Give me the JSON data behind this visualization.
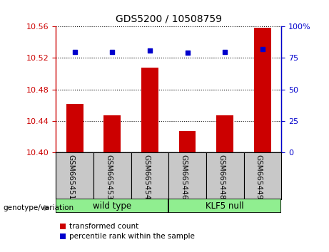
{
  "title": "GDS5200 / 10508759",
  "categories": [
    "GSM665451",
    "GSM665453",
    "GSM665454",
    "GSM665446",
    "GSM665448",
    "GSM665449"
  ],
  "bar_values": [
    10.462,
    10.447,
    10.508,
    10.427,
    10.447,
    10.558
  ],
  "percentile_values": [
    80,
    80,
    81,
    79,
    80,
    82
  ],
  "ylim_left": [
    10.4,
    10.56
  ],
  "ylim_right": [
    0,
    100
  ],
  "yticks_left": [
    10.4,
    10.44,
    10.48,
    10.52,
    10.56
  ],
  "yticks_right": [
    0,
    25,
    50,
    75,
    100
  ],
  "bar_color": "#cc0000",
  "percentile_color": "#0000cc",
  "wild_type_label": "wild type",
  "klf5_null_label": "KLF5 null",
  "group_bg_color": "#90ee90",
  "label_area_color": "#c8c8c8",
  "legend_bar_label": "transformed count",
  "legend_pct_label": "percentile rank within the sample",
  "genotype_label": "genotype/variation",
  "fig_width": 4.61,
  "fig_height": 3.54,
  "dpi": 100
}
